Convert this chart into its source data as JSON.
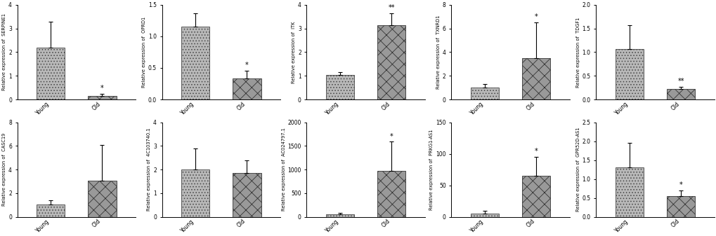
{
  "panels": [
    {
      "gene": "SERPINE1",
      "ylabel": "Relative expression of  SERPINE1",
      "ylim": [
        0,
        4
      ],
      "yticks": [
        0,
        1,
        2,
        3,
        4
      ],
      "young_val": 2.2,
      "old_val": 0.15,
      "young_err": 1.1,
      "old_err": 0.1,
      "sig": "*",
      "sig_on": "old"
    },
    {
      "gene": "OPRD1",
      "ylabel": "Relative expression of  OPRD1",
      "ylim": [
        0,
        1.5
      ],
      "yticks": [
        0.0,
        0.5,
        1.0,
        1.5
      ],
      "young_val": 1.15,
      "old_val": 0.33,
      "young_err": 0.22,
      "old_err": 0.13,
      "sig": "*",
      "sig_on": "old"
    },
    {
      "gene": "ITK",
      "ylabel": "Relative expression of  ITK",
      "ylim": [
        0,
        4
      ],
      "yticks": [
        0,
        1,
        2,
        3,
        4
      ],
      "young_val": 1.05,
      "old_val": 3.15,
      "young_err": 0.1,
      "old_err": 0.5,
      "sig": "**",
      "sig_on": "old"
    },
    {
      "gene": "TXNRD1",
      "ylabel": "Relative expression of  TXNRD1",
      "ylim": [
        0,
        8
      ],
      "yticks": [
        0,
        2,
        4,
        6,
        8
      ],
      "young_val": 1.0,
      "old_val": 3.5,
      "young_err": 0.3,
      "old_err": 3.0,
      "sig": "*",
      "sig_on": "old"
    },
    {
      "gene": "TDGF1",
      "ylabel": "Relative expression of  TDGF1",
      "ylim": [
        0,
        2.0
      ],
      "yticks": [
        0.0,
        0.5,
        1.0,
        1.5,
        2.0
      ],
      "young_val": 1.07,
      "old_val": 0.22,
      "young_err": 0.5,
      "old_err": 0.05,
      "sig": "**",
      "sig_on": "old"
    },
    {
      "gene": "CASC19",
      "ylabel": "Relative expression of  CASC19",
      "ylim": [
        0,
        8
      ],
      "yticks": [
        0,
        2,
        4,
        6,
        8
      ],
      "young_val": 1.05,
      "old_val": 3.05,
      "young_err": 0.35,
      "old_err": 3.0,
      "sig": null,
      "sig_on": null
    },
    {
      "gene": "4C103740.1",
      "ylabel": "Relative expression of  4C103740.1",
      "ylim": [
        0,
        4
      ],
      "yticks": [
        0,
        1,
        2,
        3,
        4
      ],
      "young_val": 2.0,
      "old_val": 1.85,
      "young_err": 0.9,
      "old_err": 0.55,
      "sig": null,
      "sig_on": null
    },
    {
      "gene": "AC024797.1",
      "ylabel": "Relative expression of  AC024797.1",
      "ylim": [
        0,
        2000
      ],
      "yticks": [
        0,
        500,
        1000,
        1500,
        2000
      ],
      "young_val": 55,
      "old_val": 970,
      "young_err": 30,
      "old_err": 620,
      "sig": "*",
      "sig_on": "old"
    },
    {
      "gene": "PRKG1-AS1",
      "ylabel": "Relative expression of  PRKG1-AS1",
      "ylim": [
        0,
        150
      ],
      "yticks": [
        0,
        50,
        100,
        150
      ],
      "young_val": 5,
      "old_val": 65,
      "young_err": 5,
      "old_err": 30,
      "sig": "*",
      "sig_on": "old"
    },
    {
      "gene": "GPR52D-AS1",
      "ylabel": "Relative expression of  GPR52D-AS1",
      "ylim": [
        0,
        2.5
      ],
      "yticks": [
        0.0,
        0.5,
        1.0,
        1.5,
        2.0,
        2.5
      ],
      "young_val": 1.3,
      "old_val": 0.55,
      "young_err": 0.65,
      "old_err": 0.15,
      "sig": "*",
      "sig_on": "old"
    }
  ],
  "figsize": [
    10.2,
    3.37
  ],
  "dpi": 100
}
